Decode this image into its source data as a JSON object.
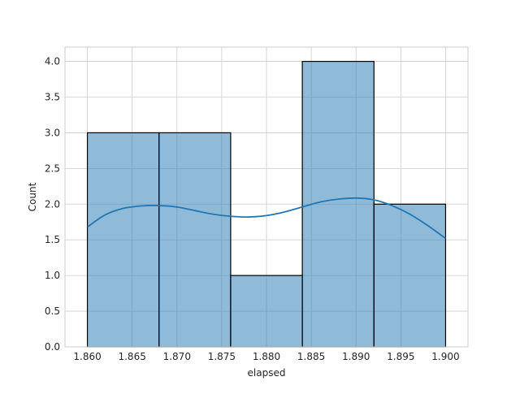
{
  "chart_data": {
    "type": "bar",
    "title": "",
    "xlabel": "elapsed",
    "ylabel": "Count",
    "xlim": [
      1.8575,
      1.9025
    ],
    "ylim": [
      0,
      4.2
    ],
    "grid": true,
    "x_ticks": [
      1.86,
      1.865,
      1.87,
      1.875,
      1.88,
      1.885,
      1.89,
      1.895,
      1.9
    ],
    "x_tick_labels": [
      "1.860",
      "1.865",
      "1.870",
      "1.875",
      "1.880",
      "1.885",
      "1.890",
      "1.895",
      "1.900"
    ],
    "y_ticks": [
      0,
      0.5,
      1,
      1.5,
      2,
      2.5,
      3,
      3.5,
      4
    ],
    "y_tick_labels": [
      "0.0",
      "0.5",
      "1.0",
      "1.5",
      "2.0",
      "2.5",
      "3.0",
      "3.5",
      "4.0"
    ],
    "bins": [
      {
        "start": 1.86,
        "end": 1.868,
        "count": 3
      },
      {
        "start": 1.868,
        "end": 1.876,
        "count": 3
      },
      {
        "start": 1.876,
        "end": 1.884,
        "count": 1
      },
      {
        "start": 1.884,
        "end": 1.892,
        "count": 4
      },
      {
        "start": 1.892,
        "end": 1.9,
        "count": 2
      }
    ],
    "kde": {
      "x": [
        1.86,
        1.862,
        1.864,
        1.866,
        1.868,
        1.87,
        1.872,
        1.874,
        1.876,
        1.878,
        1.88,
        1.882,
        1.884,
        1.886,
        1.888,
        1.89,
        1.892,
        1.894,
        1.896,
        1.898,
        1.9
      ],
      "y": [
        1.68,
        1.85,
        1.94,
        1.975,
        1.98,
        1.96,
        1.91,
        1.86,
        1.83,
        1.82,
        1.84,
        1.89,
        1.96,
        2.03,
        2.07,
        2.085,
        2.06,
        1.98,
        1.86,
        1.7,
        1.52
      ]
    },
    "colors": {
      "bar_fill": "#1f77b4",
      "bar_fill_opacity": 0.5,
      "bar_edge": "#000000",
      "kde_line": "#1f77b4",
      "grid": "#cccccc",
      "spine": "#cccccc"
    }
  }
}
